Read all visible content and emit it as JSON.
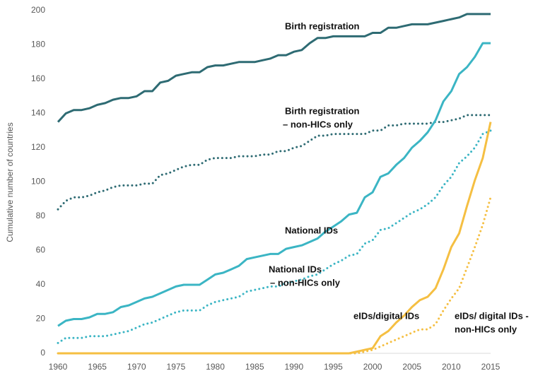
{
  "chart_data": {
    "type": "line",
    "y_label": "Cumulative number of countries",
    "x": [
      1960,
      1961,
      1962,
      1963,
      1964,
      1965,
      1966,
      1967,
      1968,
      1969,
      1970,
      1971,
      1972,
      1973,
      1974,
      1975,
      1976,
      1977,
      1978,
      1979,
      1980,
      1981,
      1982,
      1983,
      1984,
      1985,
      1986,
      1987,
      1988,
      1989,
      1990,
      1991,
      1992,
      1993,
      1994,
      1995,
      1996,
      1997,
      1998,
      1999,
      2000,
      2001,
      2002,
      2003,
      2004,
      2005,
      2006,
      2007,
      2008,
      2009,
      2010,
      2011,
      2012,
      2013,
      2014,
      2015
    ],
    "xlim": [
      1960,
      2015
    ],
    "xticks": [
      1960,
      1965,
      1970,
      1975,
      1980,
      1985,
      1990,
      1995,
      2000,
      2005,
      2010,
      2015
    ],
    "ylim": [
      0,
      200
    ],
    "yticks": [
      0,
      20,
      40,
      60,
      80,
      100,
      120,
      140,
      160,
      180,
      200
    ],
    "series": [
      {
        "label": [
          "Birth registration"
        ],
        "color": "#2e6b73",
        "dotted": false,
        "values": [
          135,
          140,
          142,
          142,
          143,
          145,
          146,
          148,
          149,
          149,
          150,
          153,
          153,
          158,
          159,
          162,
          163,
          164,
          164,
          167,
          168,
          168,
          169,
          170,
          170,
          170,
          171,
          172,
          174,
          174,
          176,
          177,
          181,
          184,
          184,
          185,
          185,
          185,
          185,
          185,
          187,
          187,
          190,
          190,
          191,
          192,
          192,
          192,
          193,
          194,
          195,
          196,
          198,
          198,
          198,
          198
        ]
      },
      {
        "label": [
          "Birth registration",
          "– non-HICs only"
        ],
        "color": "#2e6b73",
        "dotted": true,
        "values": [
          84,
          89,
          91,
          91,
          92,
          94,
          95,
          97,
          98,
          98,
          98,
          99,
          99,
          104,
          105,
          107,
          109,
          110,
          110,
          113,
          114,
          114,
          114,
          115,
          115,
          115,
          116,
          116,
          118,
          118,
          120,
          121,
          124,
          127,
          127,
          128,
          128,
          128,
          128,
          128,
          130,
          130,
          133,
          133,
          134,
          134,
          134,
          134,
          135,
          135,
          136,
          137,
          139,
          139,
          139,
          139
        ]
      },
      {
        "label": [
          "National IDs"
        ],
        "color": "#3bb5c4",
        "dotted": false,
        "values": [
          16,
          19,
          20,
          20,
          21,
          23,
          23,
          24,
          27,
          28,
          30,
          32,
          33,
          35,
          37,
          39,
          40,
          40,
          40,
          43,
          46,
          47,
          49,
          51,
          55,
          56,
          57,
          58,
          58,
          61,
          62,
          63,
          65,
          67,
          71,
          74,
          77,
          81,
          82,
          91,
          94,
          103,
          105,
          110,
          114,
          120,
          124,
          129,
          136,
          147,
          153,
          163,
          167,
          173,
          181,
          181
        ]
      },
      {
        "label": [
          "National IDs",
          "– non-HICs only"
        ],
        "color": "#3bb5c4",
        "dotted": true,
        "values": [
          6,
          9,
          9,
          9,
          10,
          10,
          10,
          11,
          12,
          13,
          15,
          17,
          18,
          20,
          22,
          24,
          25,
          25,
          25,
          28,
          30,
          31,
          32,
          33,
          36,
          37,
          38,
          39,
          39,
          41,
          42,
          43,
          45,
          46,
          49,
          52,
          54,
          57,
          58,
          64,
          66,
          72,
          73,
          76,
          79,
          82,
          84,
          87,
          91,
          98,
          103,
          111,
          115,
          120,
          128,
          130
        ]
      },
      {
        "label": [
          "eIDs/digital IDs"
        ],
        "color": "#f5bf42",
        "dotted": false,
        "values": [
          0,
          0,
          0,
          0,
          0,
          0,
          0,
          0,
          0,
          0,
          0,
          0,
          0,
          0,
          0,
          0,
          0,
          0,
          0,
          0,
          0,
          0,
          0,
          0,
          0,
          0,
          0,
          0,
          0,
          0,
          0,
          0,
          0,
          0,
          0,
          0,
          0,
          0,
          1,
          2,
          3,
          10,
          13,
          18,
          22,
          27,
          31,
          33,
          38,
          49,
          62,
          70,
          86,
          101,
          114,
          135
        ]
      },
      {
        "label": [
          "eIDs/ digital IDs -",
          "non-HICs only"
        ],
        "color": "#f5bf42",
        "dotted": true,
        "values": [
          0,
          0,
          0,
          0,
          0,
          0,
          0,
          0,
          0,
          0,
          0,
          0,
          0,
          0,
          0,
          0,
          0,
          0,
          0,
          0,
          0,
          0,
          0,
          0,
          0,
          0,
          0,
          0,
          0,
          0,
          0,
          0,
          0,
          0,
          0,
          0,
          0,
          0,
          0,
          1,
          2,
          4,
          6,
          8,
          10,
          12,
          14,
          14,
          17,
          25,
          32,
          38,
          50,
          62,
          75,
          91
        ]
      }
    ]
  }
}
